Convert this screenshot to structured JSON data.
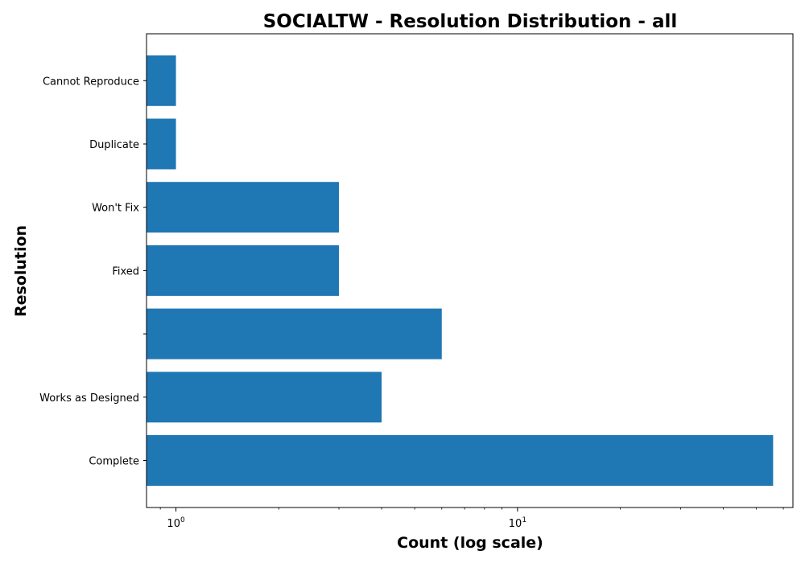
{
  "chart_data": {
    "type": "bar",
    "orientation": "horizontal",
    "title": "SOCIALTW - Resolution Distribution - all",
    "xlabel": "Count (log scale)",
    "ylabel": "Resolution",
    "xscale": "log",
    "xlim": [
      0.82,
      64
    ],
    "x_ticks": [
      {
        "value": 1,
        "base": "10",
        "exp": "0"
      },
      {
        "value": 10,
        "base": "10",
        "exp": "1"
      }
    ],
    "categories": [
      "Complete",
      "Works as Designed",
      "",
      "Fixed",
      "Won't Fix",
      "Duplicate",
      "Cannot Reproduce"
    ],
    "values": [
      56,
      4,
      6,
      3,
      3,
      1,
      1
    ],
    "bar_color": "#1f77b4",
    "grid": false
  }
}
